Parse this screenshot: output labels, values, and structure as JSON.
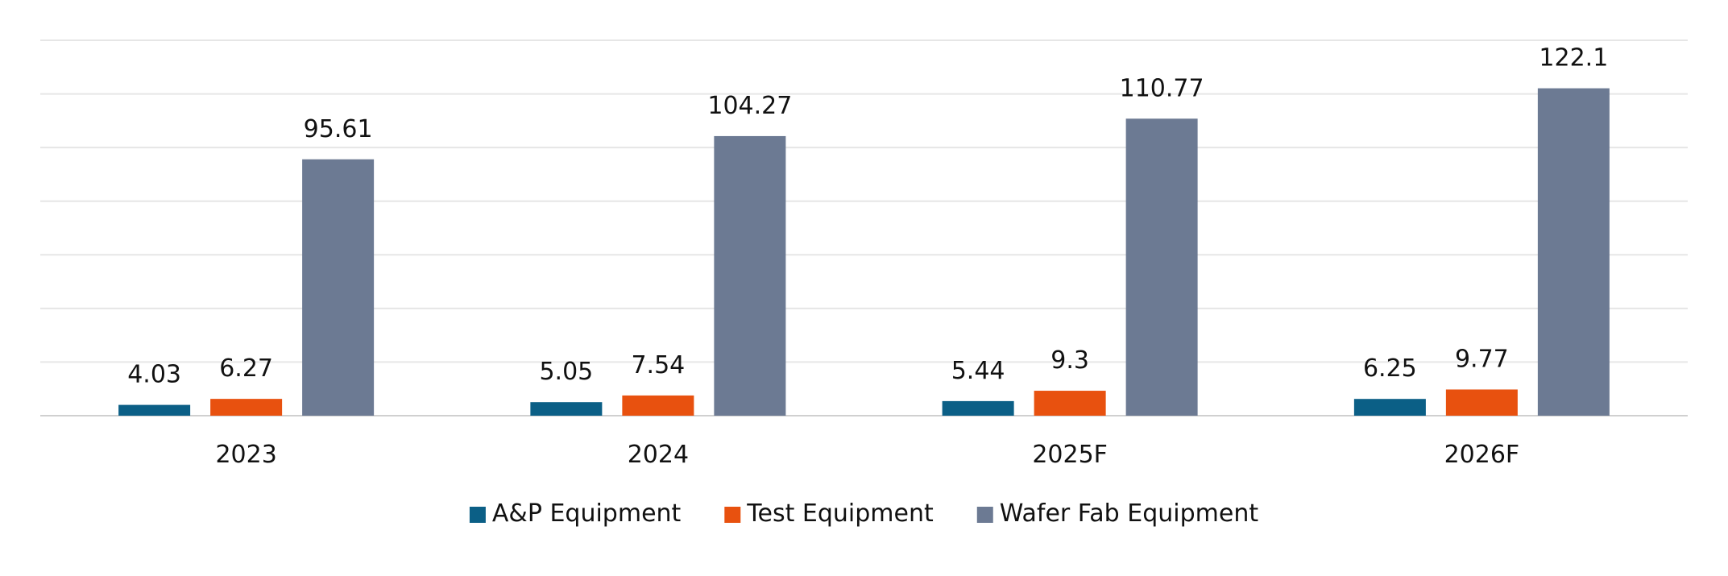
{
  "chart_data": {
    "type": "bar",
    "title": "",
    "xlabel": "",
    "ylabel": "",
    "categories": [
      "2023",
      "2024",
      "2025F",
      "2026F"
    ],
    "series": [
      {
        "name": "A&P Equipment",
        "color": "#0b5f86",
        "values": [
          4.03,
          5.05,
          5.44,
          6.25
        ]
      },
      {
        "name": "Test Equipment",
        "color": "#e8510f",
        "values": [
          6.27,
          7.54,
          9.3,
          9.77
        ]
      },
      {
        "name": "Wafer Fab Equipment",
        "color": "#6c7a93",
        "values": [
          95.61,
          104.27,
          110.77,
          122.1
        ]
      }
    ],
    "ylim": [
      0,
      140
    ],
    "y_gridlines": [
      0,
      20,
      40,
      60,
      80,
      100,
      120,
      140
    ],
    "y_tick_labels_shown": false,
    "grid": true,
    "data_labels": true,
    "legend_position": "bottom-center"
  }
}
